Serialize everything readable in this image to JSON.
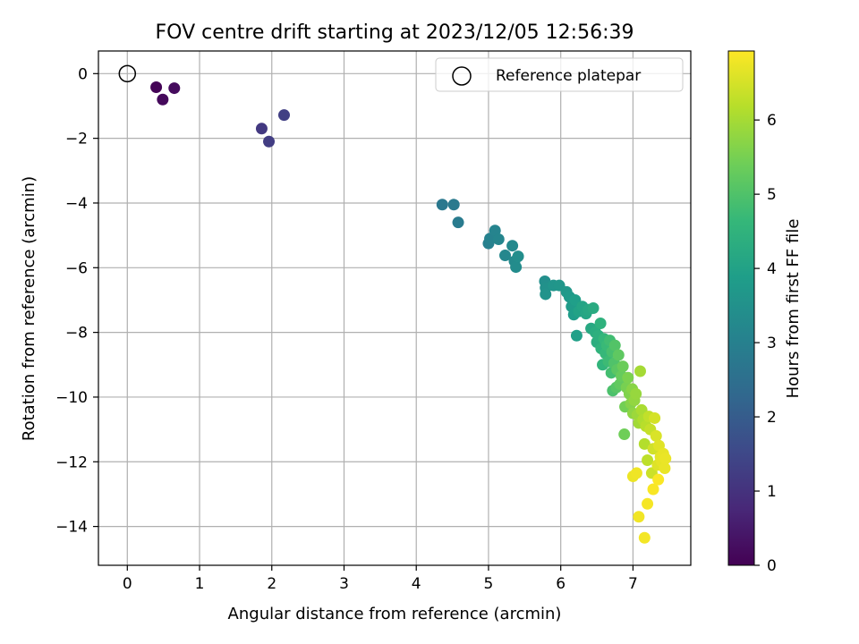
{
  "chart_data": {
    "type": "scatter",
    "title": "FOV centre drift starting at 2023/12/05 12:56:39",
    "xlabel": "Angular distance from reference (arcmin)",
    "ylabel": "Rotation from reference (arcmin)",
    "colorbar_label": "Hours from first FF file",
    "colormap": "viridis",
    "xlim": [
      -0.4,
      7.8
    ],
    "ylim": [
      -15.2,
      0.7
    ],
    "clim": [
      0,
      6.93
    ],
    "x_ticks": [
      0,
      1,
      2,
      3,
      4,
      5,
      6,
      7
    ],
    "y_ticks": [
      0,
      -2,
      -4,
      -6,
      -8,
      -10,
      -12,
      -14
    ],
    "colorbar_ticks": [
      0,
      1,
      2,
      3,
      4,
      5,
      6
    ],
    "grid": true,
    "legend": {
      "position": "top-right",
      "entries": [
        {
          "label": "Reference platepar",
          "marker": "open-circle"
        }
      ]
    },
    "reference_point": {
      "x": 0,
      "y": 0
    },
    "points": [
      [
        0.4,
        -0.42,
        0.05
      ],
      [
        0.49,
        -0.8,
        0.15
      ],
      [
        0.65,
        -0.45,
        0.2
      ],
      [
        1.86,
        -1.7,
        1.15
      ],
      [
        1.96,
        -2.1,
        1.25
      ],
      [
        2.17,
        -1.28,
        1.3
      ],
      [
        4.36,
        -4.05,
        2.75
      ],
      [
        4.52,
        -4.05,
        2.8
      ],
      [
        4.58,
        -4.6,
        2.85
      ],
      [
        5.0,
        -5.25,
        3.0
      ],
      [
        5.02,
        -5.1,
        3.05
      ],
      [
        5.09,
        -4.85,
        3.1
      ],
      [
        5.14,
        -5.12,
        3.15
      ],
      [
        5.23,
        -5.62,
        3.2
      ],
      [
        5.33,
        -5.32,
        3.25
      ],
      [
        5.36,
        -5.8,
        3.3
      ],
      [
        5.38,
        -5.98,
        3.35
      ],
      [
        5.41,
        -5.65,
        3.4
      ],
      [
        5.78,
        -6.42,
        3.45
      ],
      [
        5.79,
        -6.62,
        3.5
      ],
      [
        5.79,
        -6.82,
        3.55
      ],
      [
        5.9,
        -6.55,
        3.6
      ],
      [
        5.98,
        -6.55,
        3.65
      ],
      [
        6.08,
        -6.75,
        3.7
      ],
      [
        6.12,
        -6.9,
        3.75
      ],
      [
        6.15,
        -7.2,
        3.8
      ],
      [
        6.18,
        -7.45,
        3.85
      ],
      [
        6.2,
        -7.0,
        3.9
      ],
      [
        6.22,
        -8.1,
        3.95
      ],
      [
        6.25,
        -7.35,
        4.0
      ],
      [
        6.3,
        -7.2,
        4.05
      ],
      [
        6.35,
        -7.42,
        4.1
      ],
      [
        6.38,
        -7.3,
        4.15
      ],
      [
        6.42,
        -7.88,
        4.2
      ],
      [
        6.45,
        -7.25,
        4.25
      ],
      [
        6.48,
        -8.0,
        4.3
      ],
      [
        6.5,
        -8.3,
        4.35
      ],
      [
        6.52,
        -8.1,
        4.4
      ],
      [
        6.55,
        -7.72,
        4.45
      ],
      [
        6.56,
        -8.5,
        4.5
      ],
      [
        6.58,
        -9.0,
        4.55
      ],
      [
        6.6,
        -8.2,
        4.6
      ],
      [
        6.62,
        -8.65,
        4.65
      ],
      [
        6.64,
        -8.4,
        4.7
      ],
      [
        6.66,
        -8.9,
        4.75
      ],
      [
        6.68,
        -8.25,
        4.8
      ],
      [
        6.7,
        -9.25,
        4.85
      ],
      [
        6.71,
        -8.6,
        4.9
      ],
      [
        6.72,
        -9.8,
        4.95
      ],
      [
        6.74,
        -8.95,
        5.0
      ],
      [
        6.75,
        -8.4,
        5.05
      ],
      [
        6.77,
        -9.7,
        5.1
      ],
      [
        6.78,
        -9.15,
        5.15
      ],
      [
        6.8,
        -8.7,
        5.2
      ],
      [
        6.82,
        -9.6,
        5.25
      ],
      [
        6.84,
        -9.35,
        5.3
      ],
      [
        6.86,
        -9.05,
        5.35
      ],
      [
        6.88,
        -11.15,
        5.4
      ],
      [
        6.89,
        -10.3,
        5.45
      ],
      [
        6.91,
        -9.7,
        5.5
      ],
      [
        6.93,
        -9.4,
        5.55
      ],
      [
        6.95,
        -9.9,
        5.6
      ],
      [
        6.97,
        -10.2,
        5.65
      ],
      [
        6.99,
        -9.75,
        5.7
      ],
      [
        7.0,
        -10.5,
        5.75
      ],
      [
        7.02,
        -10.1,
        5.8
      ],
      [
        7.04,
        -9.9,
        5.85
      ],
      [
        7.06,
        -10.55,
        5.9
      ],
      [
        7.08,
        -10.8,
        5.95
      ],
      [
        7.1,
        -9.2,
        6.0
      ],
      [
        7.12,
        -10.4,
        6.05
      ],
      [
        7.14,
        -10.7,
        6.1
      ],
      [
        7.16,
        -11.45,
        6.15
      ],
      [
        7.18,
        -10.9,
        6.2
      ],
      [
        7.2,
        -11.95,
        6.25
      ],
      [
        7.22,
        -10.6,
        6.3
      ],
      [
        7.24,
        -11.0,
        6.35
      ],
      [
        7.26,
        -12.35,
        6.4
      ],
      [
        7.28,
        -11.6,
        6.45
      ],
      [
        7.3,
        -10.65,
        6.5
      ],
      [
        7.32,
        -11.2,
        6.55
      ],
      [
        7.34,
        -12.1,
        6.6
      ],
      [
        7.36,
        -11.5,
        6.62
      ],
      [
        7.38,
        -11.85,
        6.65
      ],
      [
        7.4,
        -12.0,
        6.68
      ],
      [
        7.42,
        -11.75,
        6.7
      ],
      [
        7.44,
        -12.2,
        6.72
      ],
      [
        7.45,
        -11.9,
        6.73
      ],
      [
        7.0,
        -12.45,
        6.75
      ],
      [
        7.05,
        -12.35,
        6.78
      ],
      [
        7.08,
        -13.7,
        6.8
      ],
      [
        7.16,
        -14.35,
        6.82
      ],
      [
        7.2,
        -13.3,
        6.85
      ],
      [
        7.28,
        -12.85,
        6.88
      ],
      [
        7.35,
        -12.55,
        6.9
      ]
    ]
  }
}
